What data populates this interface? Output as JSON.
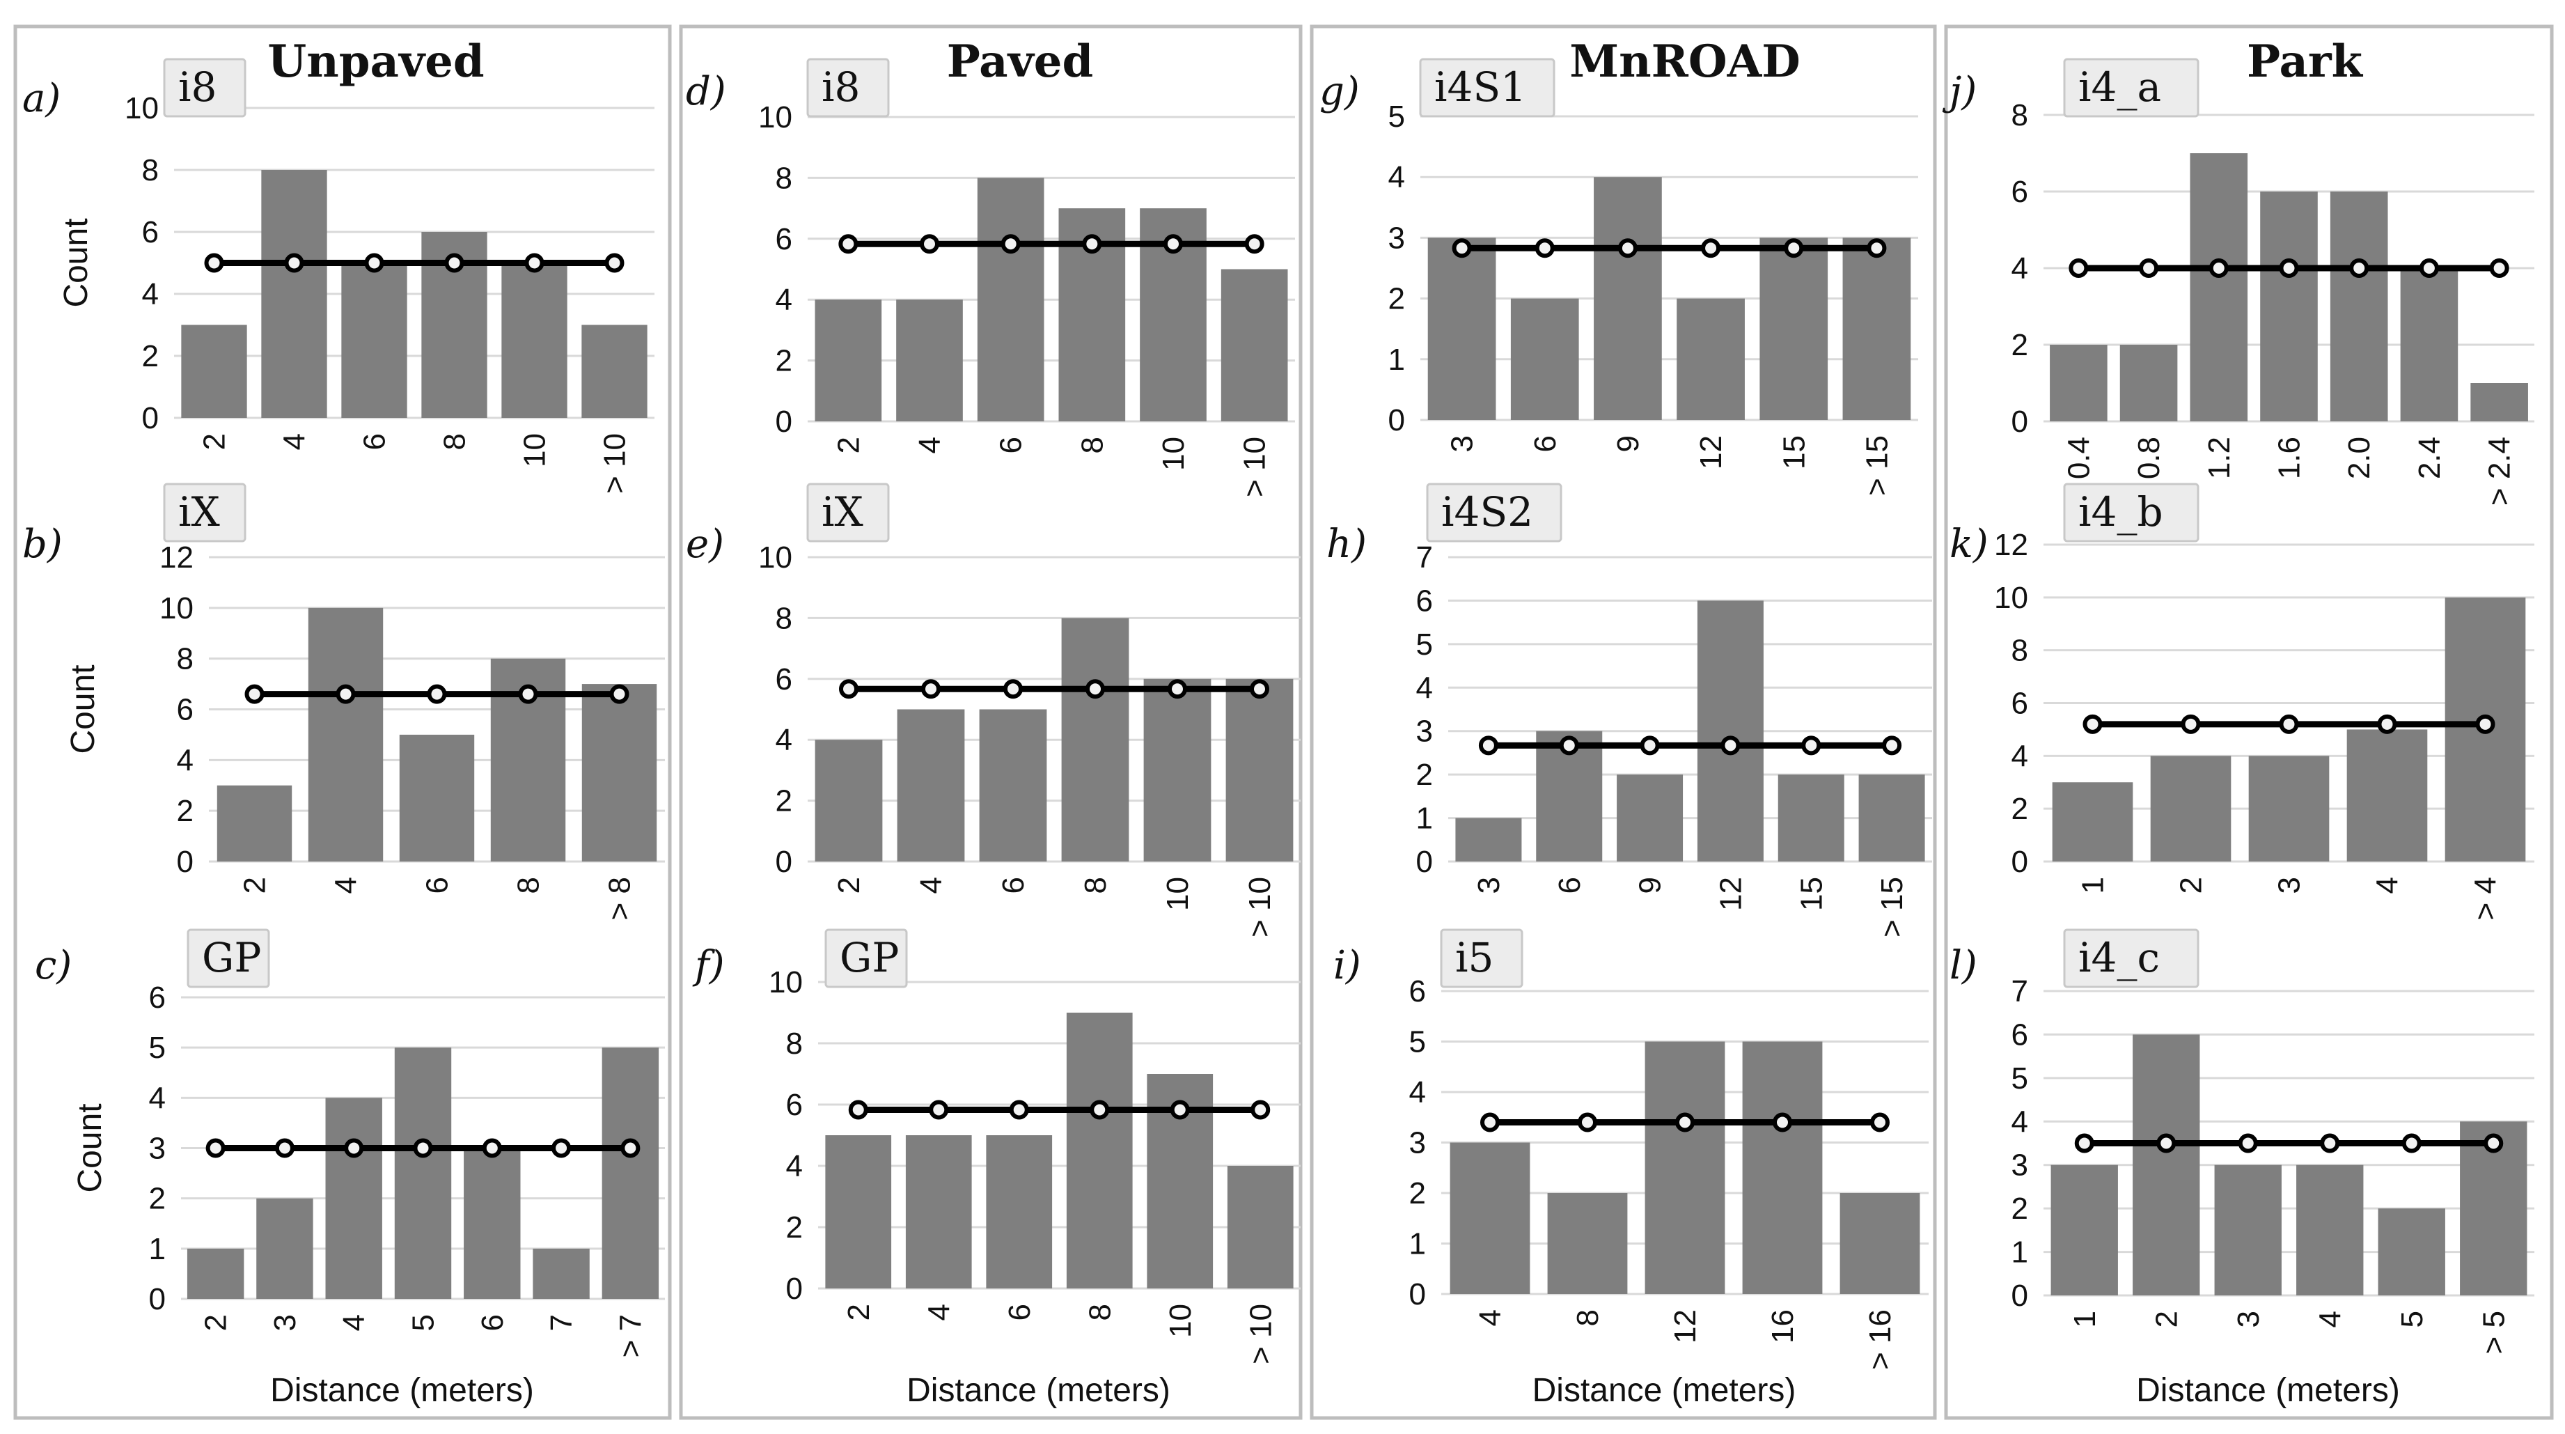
{
  "columns": [
    {
      "title": "Unpaved",
      "charts": [
        0,
        1,
        2
      ]
    },
    {
      "title": "Paved",
      "charts": [
        3,
        4,
        5
      ]
    },
    {
      "title": "MnROAD",
      "charts": [
        6,
        7,
        8
      ]
    },
    {
      "title": "Park",
      "charts": [
        9,
        10,
        11
      ]
    }
  ],
  "colors": {
    "bar": "#7f7f7f",
    "mean_line": "#000000",
    "grid": "#d9d9d9",
    "panel_border": "#bdbdbd",
    "badge_fill": "#ececec"
  },
  "chart_data": [
    {
      "type": "bar",
      "panel": "a)",
      "title": "i8",
      "ylabel": "Count",
      "xlabel": "",
      "categories": [
        "2",
        "4",
        "6",
        "8",
        "10",
        "> 10"
      ],
      "values": [
        3,
        8,
        5,
        6,
        5,
        3
      ],
      "mean": 5,
      "ylim": [
        0,
        10
      ],
      "ytick_step": 2
    },
    {
      "type": "bar",
      "panel": "b)",
      "title": "iX",
      "ylabel": "Count",
      "xlabel": "",
      "categories": [
        "2",
        "4",
        "6",
        "8",
        "> 8"
      ],
      "values": [
        3,
        10,
        5,
        8,
        7
      ],
      "mean": 6.6,
      "ylim": [
        0,
        12
      ],
      "ytick_step": 2
    },
    {
      "type": "bar",
      "panel": "c)",
      "title": "GP",
      "ylabel": "Count",
      "xlabel": "Distance (meters)",
      "categories": [
        "2",
        "3",
        "4",
        "5",
        "6",
        "7",
        "> 7"
      ],
      "values": [
        1,
        2,
        4,
        5,
        3,
        1,
        5
      ],
      "mean": 3,
      "ylim": [
        0,
        6
      ],
      "ytick_step": 1
    },
    {
      "type": "bar",
      "panel": "d)",
      "title": "i8",
      "ylabel": "",
      "xlabel": "",
      "categories": [
        "2",
        "4",
        "6",
        "8",
        "10",
        "> 10"
      ],
      "values": [
        4,
        4,
        8,
        7,
        7,
        5
      ],
      "mean": 5.83,
      "ylim": [
        0,
        10
      ],
      "ytick_step": 2
    },
    {
      "type": "bar",
      "panel": "e)",
      "title": "iX",
      "ylabel": "",
      "xlabel": "",
      "categories": [
        "2",
        "4",
        "6",
        "8",
        "10",
        "> 10"
      ],
      "values": [
        4,
        5,
        5,
        8,
        6,
        6
      ],
      "mean": 5.67,
      "ylim": [
        0,
        10
      ],
      "ytick_step": 2
    },
    {
      "type": "bar",
      "panel": "f)",
      "title": "GP",
      "ylabel": "",
      "xlabel": "Distance (meters)",
      "categories": [
        "2",
        "4",
        "6",
        "8",
        "10",
        "> 10"
      ],
      "values": [
        5,
        5,
        5,
        9,
        7,
        4
      ],
      "mean": 5.83,
      "ylim": [
        0,
        10
      ],
      "ytick_step": 2
    },
    {
      "type": "bar",
      "panel": "g)",
      "title": "i4S1",
      "ylabel": "",
      "xlabel": "",
      "categories": [
        "3",
        "6",
        "9",
        "12",
        "15",
        "> 15"
      ],
      "values": [
        3,
        2,
        4,
        2,
        3,
        3
      ],
      "mean": 2.83,
      "ylim": [
        0,
        5
      ],
      "ytick_step": 1
    },
    {
      "type": "bar",
      "panel": "h)",
      "title": "i4S2",
      "ylabel": "",
      "xlabel": "",
      "categories": [
        "3",
        "6",
        "9",
        "12",
        "15",
        "> 15"
      ],
      "values": [
        1,
        3,
        2,
        6,
        2,
        2
      ],
      "mean": 2.67,
      "ylim": [
        0,
        7
      ],
      "ytick_step": 1
    },
    {
      "type": "bar",
      "panel": "i)",
      "title": "i5",
      "ylabel": "",
      "xlabel": "Distance (meters)",
      "categories": [
        "4",
        "8",
        "12",
        "16",
        "> 16"
      ],
      "values": [
        3,
        2,
        5,
        5,
        2
      ],
      "mean": 3.4,
      "ylim": [
        0,
        6
      ],
      "ytick_step": 1
    },
    {
      "type": "bar",
      "panel": "j)",
      "title": "i4_a",
      "ylabel": "",
      "xlabel": "",
      "categories": [
        "0.4",
        "0.8",
        "1.2",
        "1.6",
        "2.0",
        "2.4",
        "> 2.4"
      ],
      "values": [
        2,
        2,
        7,
        6,
        6,
        4,
        1
      ],
      "mean": 4,
      "ylim": [
        0,
        8
      ],
      "ytick_step": 2
    },
    {
      "type": "bar",
      "panel": "k)",
      "title": "i4_b",
      "ylabel": "",
      "xlabel": "",
      "categories": [
        "1",
        "2",
        "3",
        "4",
        "> 4"
      ],
      "values": [
        3,
        4,
        4,
        5,
        10
      ],
      "mean": 5.2,
      "ylim": [
        0,
        12
      ],
      "ytick_step": 2
    },
    {
      "type": "bar",
      "panel": "l)",
      "title": "i4_c",
      "ylabel": "",
      "xlabel": "Distance (meters)",
      "categories": [
        "1",
        "2",
        "3",
        "4",
        "5",
        "> 5"
      ],
      "values": [
        3,
        6,
        3,
        3,
        2,
        4
      ],
      "mean": 3.5,
      "ylim": [
        0,
        7
      ],
      "ytick_step": 1
    }
  ]
}
